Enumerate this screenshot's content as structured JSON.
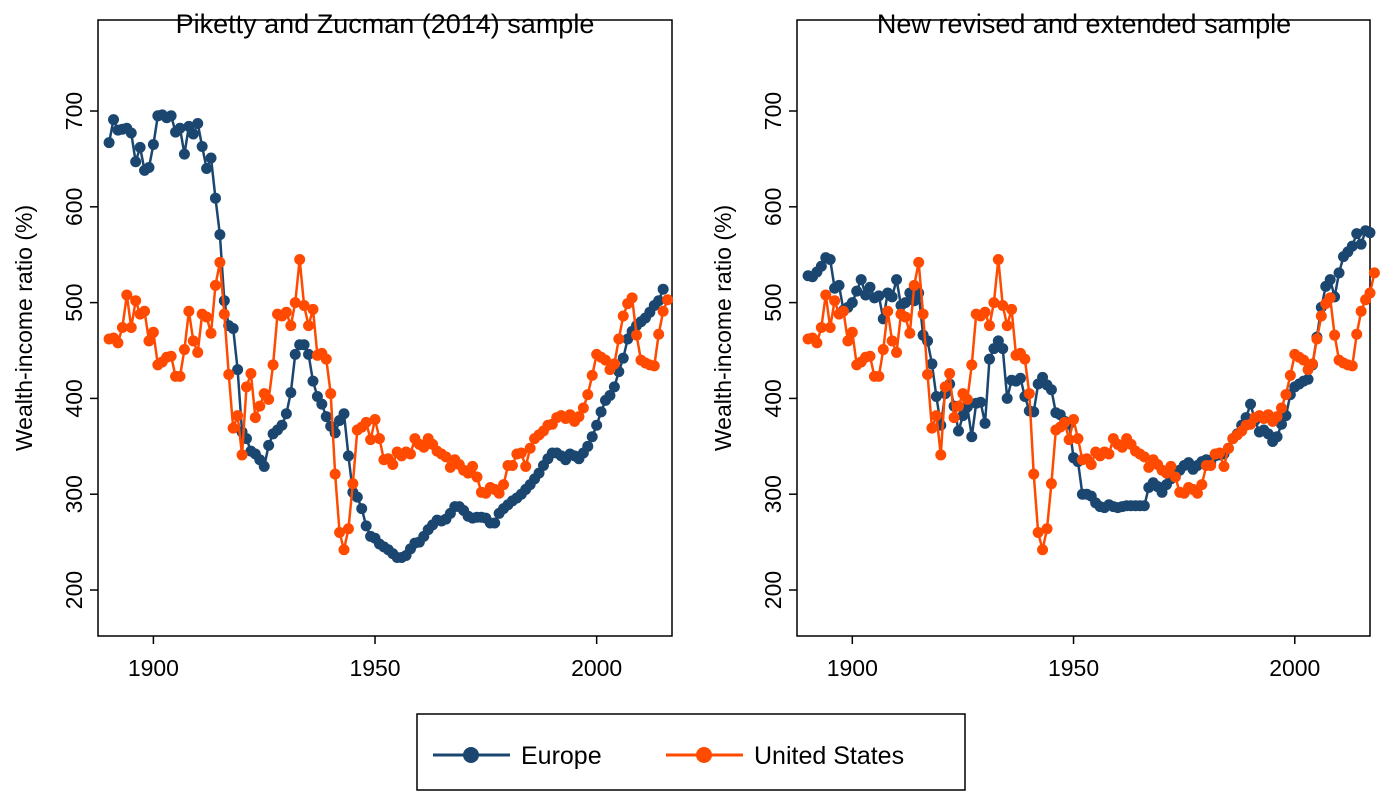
{
  "colors": {
    "Europe": "#1a4670",
    "United States": "#ff4a00"
  },
  "legend": {
    "items": [
      "Europe",
      "United States"
    ],
    "placement": "bottom"
  },
  "chart_data": [
    {
      "type": "line",
      "title": "Piketty and Zucman (2014) sample",
      "xlabel": "",
      "ylabel": "Wealth-income ratio (%)",
      "xlim": [
        1887.5,
        2017
      ],
      "ylim": [
        152,
        795
      ],
      "xticks": [
        1900,
        1950,
        2000
      ],
      "yticks": [
        200,
        300,
        400,
        500,
        600,
        700
      ],
      "grid": false,
      "series": [
        {
          "name": "Europe",
          "start_year": 1890,
          "values": [
            667,
            691,
            680,
            681,
            682,
            677,
            647,
            662,
            638,
            641,
            665,
            695,
            696,
            693,
            695,
            678,
            682,
            655,
            684,
            676,
            687,
            663,
            640,
            651,
            609,
            571,
            502,
            476,
            473,
            430,
            365,
            358,
            345,
            342,
            336,
            329,
            351,
            363,
            367,
            372,
            384,
            406,
            446,
            456,
            456,
            446,
            418,
            402,
            394,
            381,
            371,
            364,
            377,
            384,
            340,
            302,
            297,
            285,
            267,
            256,
            254,
            248,
            245,
            242,
            238,
            234,
            234,
            236,
            243,
            249,
            250,
            256,
            263,
            268,
            273,
            272,
            274,
            280,
            287,
            287,
            283,
            277,
            275,
            276,
            276,
            275,
            270,
            270,
            280,
            285,
            289,
            293,
            296,
            300,
            305,
            310,
            316,
            322,
            330,
            337,
            343,
            343,
            340,
            336,
            342,
            340,
            337,
            343,
            350,
            360,
            372,
            386,
            398,
            403,
            412,
            428,
            442,
            462,
            470,
            476,
            480,
            484,
            490,
            497,
            502,
            514
          ]
        },
        {
          "name": "United States",
          "start_year": 1890,
          "values": [
            462,
            463,
            458,
            474,
            508,
            474,
            502,
            488,
            491,
            460,
            469,
            435,
            438,
            443,
            444,
            423,
            423,
            451,
            491,
            460,
            448,
            488,
            485,
            468,
            518,
            542,
            488,
            425,
            369,
            382,
            341,
            412,
            426,
            380,
            392,
            405,
            399,
            435,
            488,
            486,
            490,
            476,
            500,
            545,
            497,
            476,
            493,
            445,
            447,
            441,
            405,
            321,
            260,
            242,
            264,
            311,
            367,
            370,
            375,
            357,
            378,
            358,
            336,
            337,
            331,
            344,
            340,
            344,
            342,
            358,
            352,
            349,
            358,
            352,
            345,
            342,
            339,
            328,
            336,
            331,
            325,
            322,
            329,
            318,
            302,
            301,
            307,
            305,
            301,
            310,
            330,
            330,
            342,
            343,
            329,
            348,
            358,
            362,
            366,
            372,
            373,
            380,
            382,
            379,
            383,
            376,
            381,
            390,
            404,
            424,
            446,
            443,
            440,
            430,
            436,
            462,
            486,
            499,
            505,
            466,
            440,
            437,
            435,
            434,
            467,
            491,
            503
          ]
        }
      ]
    },
    {
      "type": "line",
      "title": "New revised and extended sample",
      "xlabel": "",
      "ylabel": "Wealth-income ratio (%)",
      "xlim": [
        1887.5,
        2017
      ],
      "ylim": [
        152,
        795
      ],
      "xticks": [
        1900,
        1950,
        2000
      ],
      "yticks": [
        200,
        300,
        400,
        500,
        600,
        700
      ],
      "grid": false,
      "series": [
        {
          "name": "Europe",
          "start_year": 1890,
          "values": [
            528,
            527,
            532,
            538,
            547,
            545,
            515,
            518,
            492,
            495,
            500,
            512,
            524,
            508,
            516,
            505,
            507,
            483,
            510,
            506,
            524,
            497,
            500,
            510,
            502,
            510,
            466,
            460,
            436,
            402,
            372,
            405,
            415,
            392,
            366,
            382,
            391,
            360,
            395,
            396,
            374,
            441,
            452,
            460,
            452,
            400,
            419,
            418,
            421,
            402,
            387,
            386,
            415,
            422,
            414,
            409,
            385,
            383,
            376,
            373,
            338,
            334,
            300,
            300,
            298,
            291,
            287,
            286,
            289,
            287,
            286,
            287,
            288,
            288,
            288,
            288,
            288,
            307,
            312,
            308,
            302,
            310,
            316,
            318,
            325,
            330,
            333,
            326,
            330,
            334,
            336,
            333,
            340,
            341,
            342,
            348,
            358,
            363,
            372,
            380,
            394,
            377,
            365,
            367,
            363,
            355,
            360,
            373,
            382,
            404,
            412,
            415,
            418,
            420,
            435,
            464,
            495,
            517,
            524,
            506,
            531,
            548,
            553,
            559,
            572,
            561,
            575,
            573
          ]
        },
        {
          "name": "United States",
          "start_year": 1890,
          "values": [
            462,
            463,
            458,
            474,
            508,
            474,
            502,
            488,
            491,
            460,
            469,
            435,
            438,
            443,
            444,
            423,
            423,
            451,
            491,
            460,
            448,
            488,
            485,
            468,
            518,
            542,
            488,
            425,
            369,
            382,
            341,
            412,
            426,
            380,
            392,
            405,
            399,
            435,
            488,
            486,
            490,
            476,
            500,
            545,
            497,
            476,
            493,
            445,
            447,
            441,
            405,
            321,
            260,
            242,
            264,
            311,
            367,
            370,
            375,
            357,
            378,
            358,
            336,
            337,
            331,
            344,
            340,
            344,
            342,
            358,
            352,
            349,
            358,
            352,
            345,
            342,
            339,
            328,
            336,
            331,
            325,
            322,
            329,
            318,
            302,
            301,
            307,
            305,
            301,
            310,
            330,
            330,
            342,
            343,
            329,
            348,
            358,
            362,
            366,
            372,
            373,
            380,
            382,
            379,
            383,
            376,
            381,
            390,
            404,
            424,
            446,
            443,
            440,
            430,
            436,
            462,
            486,
            499,
            505,
            466,
            440,
            437,
            435,
            434,
            467,
            491,
            503,
            510,
            531
          ]
        }
      ]
    }
  ]
}
